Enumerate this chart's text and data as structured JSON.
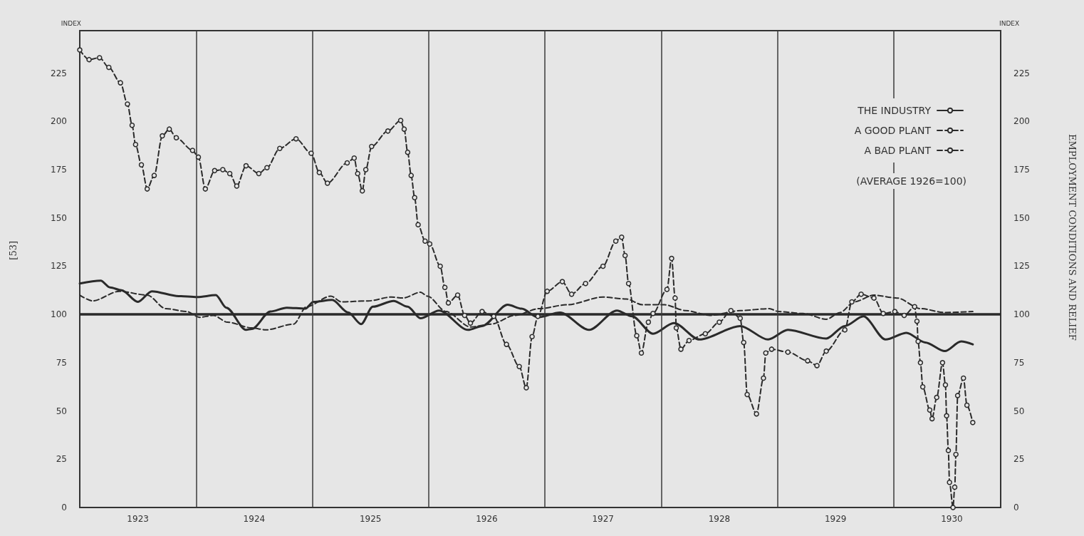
{
  "chart_data": {
    "type": "line",
    "ylabel": "INDEX",
    "y2label": "INDEX",
    "xlim": [
      1923,
      1930.92
    ],
    "xticks": [
      {
        "value": 1923.5,
        "label": "1923"
      },
      {
        "value": 1924.5,
        "label": "1924"
      },
      {
        "value": 1925.5,
        "label": "1925"
      },
      {
        "value": 1926.5,
        "label": "1926"
      },
      {
        "value": 1927.5,
        "label": "1927"
      },
      {
        "value": 1928.5,
        "label": "1928"
      },
      {
        "value": 1929.5,
        "label": "1929"
      },
      {
        "value": 1930.5,
        "label": "1930"
      }
    ],
    "ylim": [
      0,
      247
    ],
    "yticks": [
      0,
      25,
      50,
      75,
      100,
      125,
      150,
      175,
      200,
      225
    ],
    "y2lim": [
      0,
      247
    ],
    "y2ticks": [
      0,
      25,
      50,
      75,
      100,
      125,
      150,
      175,
      200,
      225
    ],
    "grid": false,
    "legend": "top right",
    "series": [
      {
        "name": "THE INDUSTRY",
        "color": "#2a2a2a",
        "line_style": "solid",
        "marker": "none",
        "x": [
          1923.0,
          1923.18,
          1923.26,
          1923.36,
          1923.5,
          1923.62,
          1923.85,
          1924.01,
          1924.17,
          1924.26,
          1924.43,
          1924.48,
          1924.64,
          1924.78,
          1924.94,
          1925.01,
          1925.17,
          1925.31,
          1925.42,
          1925.52,
          1925.7,
          1925.82,
          1925.93,
          1926.09,
          1926.34,
          1926.46,
          1926.68,
          1926.8,
          1926.94,
          1927.13,
          1927.38,
          1927.62,
          1927.75,
          1927.93,
          1928.11,
          1928.33,
          1928.68,
          1928.92,
          1929.09,
          1929.42,
          1929.58,
          1929.74,
          1929.93,
          1930.11,
          1930.27,
          1930.44,
          1930.58,
          1930.68
        ],
        "values": [
          116,
          117.5,
          114,
          112.5,
          106.5,
          112,
          109.5,
          109,
          110,
          103.5,
          92,
          92.5,
          101.5,
          103.5,
          103,
          106.5,
          107.5,
          101,
          95,
          104,
          107,
          104,
          98,
          102,
          92,
          94,
          105,
          103,
          98.5,
          101,
          92,
          102,
          99,
          90,
          95.5,
          87,
          94,
          87,
          92,
          87.5,
          94,
          99,
          87,
          90.5,
          85.5,
          81,
          86,
          84.5
        ]
      },
      {
        "name": "A GOOD PLANT",
        "color": "#2a2a2a",
        "line_style": "dashed",
        "marker": "none",
        "x": [
          1923.0,
          1923.11,
          1923.34,
          1923.58,
          1923.74,
          1923.92,
          1924.03,
          1924.15,
          1924.27,
          1924.48,
          1924.6,
          1924.84,
          1924.95,
          1925.16,
          1925.25,
          1925.48,
          1925.68,
          1925.78,
          1925.93,
          1925.99,
          1926.15,
          1926.36,
          1926.54,
          1926.74,
          1926.95,
          1927.19,
          1927.5,
          1927.7,
          1927.84,
          1928.03,
          1928.21,
          1928.42,
          1928.68,
          1928.93,
          1929.01,
          1929.22,
          1929.42,
          1929.54,
          1929.66,
          1929.83,
          1930.03,
          1930.23,
          1930.44,
          1930.68
        ],
        "values": [
          110,
          107,
          112,
          110,
          103,
          101.5,
          98.5,
          99.5,
          96,
          93,
          92,
          95,
          104,
          109.5,
          106.5,
          107,
          109,
          108.5,
          111.5,
          109.5,
          101.5,
          93.5,
          95,
          99.5,
          103,
          105,
          109,
          108,
          105,
          105,
          102,
          99.5,
          102,
          103,
          101.5,
          100.5,
          97.5,
          101,
          106.5,
          110,
          108.5,
          103,
          101,
          101.5
        ]
      },
      {
        "name": "A BAD PLANT",
        "color": "#2a2a2a",
        "line_style": "dashed",
        "marker": "circle",
        "x": [
          1923.0,
          1923.08,
          1923.17,
          1923.25,
          1923.35,
          1923.41,
          1923.45,
          1923.48,
          1923.53,
          1923.58,
          1923.64,
          1923.71,
          1923.77,
          1923.83,
          1923.97,
          1924.02,
          1924.08,
          1924.16,
          1924.23,
          1924.29,
          1924.35,
          1924.43,
          1924.54,
          1924.61,
          1924.72,
          1924.86,
          1924.99,
          1925.06,
          1925.13,
          1925.3,
          1925.36,
          1925.39,
          1925.43,
          1925.46,
          1925.51,
          1925.65,
          1925.76,
          1925.79,
          1925.82,
          1925.85,
          1925.88,
          1925.91,
          1925.97,
          1926.01,
          1926.1,
          1926.14,
          1926.17,
          1926.25,
          1926.31,
          1926.36,
          1926.46,
          1926.56,
          1926.67,
          1926.78,
          1926.84,
          1926.89,
          1926.94,
          1927.02,
          1927.15,
          1927.23,
          1927.35,
          1927.5,
          1927.61,
          1927.66,
          1927.69,
          1927.72,
          1927.79,
          1927.83,
          1927.89,
          1927.93,
          1928.05,
          1928.09,
          1928.12,
          1928.13,
          1928.17,
          1928.24,
          1928.38,
          1928.5,
          1928.6,
          1928.68,
          1928.71,
          1928.74,
          1928.82,
          1928.88,
          1928.9,
          1928.95,
          1929.09,
          1929.26,
          1929.34,
          1929.42,
          1929.58,
          1929.64,
          1929.72,
          1929.83,
          1929.91,
          1930.01,
          1930.09,
          1930.18,
          1930.2,
          1930.21,
          1930.23,
          1930.25,
          1930.31,
          1930.33,
          1930.37,
          1930.42,
          1930.445,
          1930.455,
          1930.47,
          1930.48,
          1930.51,
          1930.525,
          1930.535,
          1930.55,
          1930.6,
          1930.63,
          1930.68
        ],
        "values": [
          237,
          232,
          233,
          228,
          220,
          209,
          198,
          188,
          177.5,
          165,
          172,
          192.5,
          196,
          191.5,
          185,
          181.5,
          165,
          174.5,
          175,
          173,
          166.5,
          177,
          173,
          176,
          186,
          191,
          183.5,
          173.5,
          168,
          178.5,
          181,
          173,
          164,
          175,
          187,
          195,
          200.5,
          196,
          184,
          172,
          160.5,
          146.5,
          138,
          136.5,
          125,
          114,
          106,
          110,
          99.5,
          95.5,
          101.5,
          99,
          84.5,
          73,
          62,
          88.5,
          99,
          112,
          117,
          110.5,
          116,
          125,
          138,
          140,
          130.5,
          116,
          89,
          80,
          96,
          100.5,
          113,
          129,
          108.5,
          93,
          82,
          86.5,
          90,
          96,
          102,
          98,
          85.5,
          58.5,
          48.5,
          67,
          80,
          82,
          80.5,
          76,
          73.5,
          81,
          92,
          106.5,
          110.5,
          108.5,
          100.5,
          101.5,
          99.5,
          104,
          96.5,
          86,
          75,
          62.5,
          50.5,
          46,
          57,
          75,
          63.5,
          47.5,
          29.5,
          13,
          0,
          10.5,
          27.5,
          58,
          67,
          53,
          44
        ]
      }
    ],
    "ref_lines": [
      {
        "axis": "y",
        "value": 100,
        "color": "#2a2a2a"
      },
      {
        "axis": "x",
        "value": 1924,
        "color": "#3a3a3a"
      },
      {
        "axis": "x",
        "value": 1925,
        "color": "#3a3a3a"
      },
      {
        "axis": "x",
        "value": 1926,
        "color": "#3a3a3a"
      },
      {
        "axis": "x",
        "value": 1927,
        "color": "#3a3a3a"
      },
      {
        "axis": "x",
        "value": 1928,
        "color": "#3a3a3a"
      },
      {
        "axis": "x",
        "value": 1929,
        "color": "#3a3a3a"
      },
      {
        "axis": "x",
        "value": 1930,
        "color": "#3a3a3a"
      }
    ],
    "annotations": [
      "(AVERAGE 1926=100)",
      "[53]",
      "EMPLOYMENT CONDITIONS AND RELIEF"
    ]
  }
}
